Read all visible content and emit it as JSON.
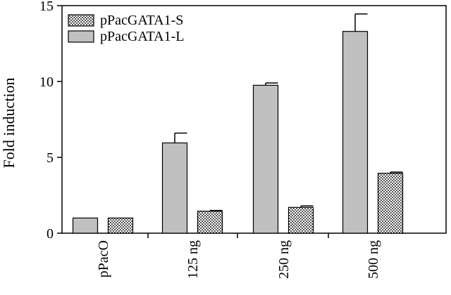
{
  "chart_data": {
    "type": "bar",
    "title": "",
    "xlabel": "",
    "ylabel": "Fold induction",
    "ylim": [
      0,
      15
    ],
    "yticks": [
      0,
      5,
      10,
      15
    ],
    "grid": false,
    "legend_position": "top-left",
    "categories": [
      "pPacO",
      "125 ng",
      "250 ng",
      "500 ng"
    ],
    "series": [
      {
        "name": "pPacGATA1-L",
        "pattern": "solid",
        "color": "#c0c0c0",
        "values": [
          1.0,
          5.95,
          9.75,
          13.3
        ],
        "errors": [
          0.0,
          0.65,
          0.15,
          1.15
        ]
      },
      {
        "name": "pPacGATA1-S",
        "pattern": "crosshatch",
        "color": "#7a7a7a",
        "values": [
          1.0,
          1.45,
          1.7,
          3.95
        ],
        "errors": [
          0.0,
          0.05,
          0.1,
          0.08
        ]
      }
    ],
    "legend_order": [
      "pPacGATA1-S",
      "pPacGATA1-L"
    ]
  }
}
